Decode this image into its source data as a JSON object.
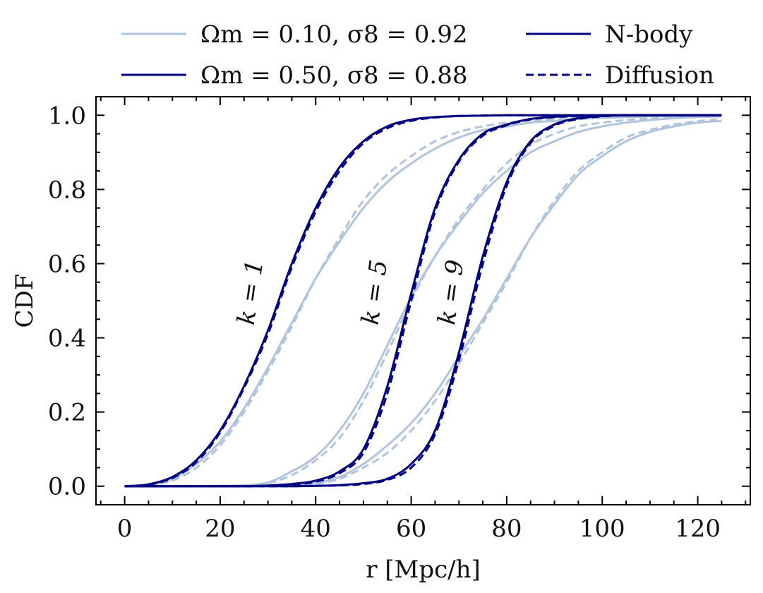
{
  "chart_data": {
    "type": "line",
    "xlabel": "r [Mpc/h]",
    "ylabel": "CDF",
    "xlim": [
      -6,
      131
    ],
    "ylim": [
      -0.05,
      1.05
    ],
    "x_ticks": [
      "0",
      "20",
      "40",
      "60",
      "80",
      "100",
      "120"
    ],
    "y_ticks": [
      "0.0",
      "0.2",
      "0.4",
      "0.6",
      "0.8",
      "1.0"
    ],
    "colors": {
      "light": "#b0c4de",
      "dark": "#000080"
    },
    "legend": {
      "placement": "top, outside plot",
      "entries": [
        {
          "label": "Ωm = 0.10, σ8 = 0.92",
          "color": "light",
          "style": "solid"
        },
        {
          "label": "Ωm = 0.50, σ8 = 0.88",
          "color": "dark",
          "style": "solid"
        },
        {
          "label": "N-body",
          "color": "dark",
          "style": "solid"
        },
        {
          "label": "Diffusion",
          "color": "dark",
          "style": "dashed"
        }
      ]
    },
    "annotations": [
      {
        "text": "k = 1",
        "x": 28,
        "y": 0.52
      },
      {
        "text": "k = 5",
        "x": 54,
        "y": 0.52
      },
      {
        "text": "k = 9",
        "x": 70,
        "y": 0.52
      }
    ],
    "x": [
      0,
      5,
      10,
      15,
      20,
      25,
      30,
      35,
      40,
      45,
      50,
      55,
      60,
      65,
      70,
      75,
      80,
      85,
      90,
      95,
      100,
      105,
      110,
      115,
      120,
      125
    ],
    "series": [
      {
        "name": "Ωm = 0.10, σ8 = 0.92",
        "k": 1,
        "model": "N-body",
        "color": "light",
        "style": "solid",
        "values": [
          0.0,
          0.004,
          0.02,
          0.06,
          0.12,
          0.21,
          0.32,
          0.44,
          0.56,
          0.66,
          0.75,
          0.82,
          0.87,
          0.91,
          0.94,
          0.96,
          0.97,
          0.98,
          0.985,
          0.99,
          0.993,
          0.995,
          0.997,
          0.998,
          0.999,
          1.0
        ]
      },
      {
        "name": "Ωm = 0.10, σ8 = 0.92",
        "k": 1,
        "model": "Diffusion",
        "color": "light",
        "style": "dashed",
        "values": [
          0.0,
          0.003,
          0.015,
          0.05,
          0.11,
          0.2,
          0.31,
          0.43,
          0.56,
          0.67,
          0.77,
          0.84,
          0.89,
          0.93,
          0.955,
          0.97,
          0.98,
          0.986,
          0.99,
          0.993,
          0.995,
          0.997,
          0.998,
          0.999,
          0.999,
          1.0
        ]
      },
      {
        "name": "Ωm = 0.50, σ8 = 0.88",
        "k": 1,
        "model": "N-body",
        "color": "dark",
        "style": "solid",
        "values": [
          0.0,
          0.005,
          0.025,
          0.07,
          0.15,
          0.27,
          0.42,
          0.6,
          0.75,
          0.86,
          0.93,
          0.97,
          0.988,
          0.995,
          0.998,
          0.999,
          1.0,
          1.0,
          1.0,
          1.0,
          1.0,
          1.0,
          1.0,
          1.0,
          1.0,
          1.0
        ]
      },
      {
        "name": "Ωm = 0.50, σ8 = 0.88",
        "k": 1,
        "model": "Diffusion",
        "color": "dark",
        "style": "dashed",
        "values": [
          0.0,
          0.004,
          0.022,
          0.065,
          0.145,
          0.265,
          0.41,
          0.59,
          0.74,
          0.85,
          0.925,
          0.965,
          0.985,
          0.994,
          0.998,
          0.999,
          1.0,
          1.0,
          1.0,
          1.0,
          1.0,
          1.0,
          1.0,
          1.0,
          1.0,
          1.0
        ]
      },
      {
        "name": "Ωm = 0.10, σ8 = 0.92",
        "k": 5,
        "model": "N-body",
        "color": "light",
        "style": "solid",
        "values": [
          0.0,
          0.0,
          0.0,
          0.0,
          0.001,
          0.003,
          0.01,
          0.04,
          0.08,
          0.15,
          0.25,
          0.38,
          0.51,
          0.62,
          0.71,
          0.79,
          0.85,
          0.9,
          0.93,
          0.955,
          0.97,
          0.98,
          0.987,
          0.992,
          0.995,
          0.997
        ]
      },
      {
        "name": "Ωm = 0.10, σ8 = 0.92",
        "k": 5,
        "model": "Diffusion",
        "color": "light",
        "style": "dashed",
        "values": [
          0.0,
          0.0,
          0.0,
          0.0,
          0.001,
          0.002,
          0.008,
          0.03,
          0.07,
          0.13,
          0.23,
          0.36,
          0.5,
          0.62,
          0.72,
          0.8,
          0.87,
          0.92,
          0.95,
          0.97,
          0.98,
          0.987,
          0.992,
          0.995,
          0.997,
          0.998
        ]
      },
      {
        "name": "Ωm = 0.50, σ8 = 0.88",
        "k": 5,
        "model": "N-body",
        "color": "dark",
        "style": "solid",
        "values": [
          0.0,
          0.0,
          0.0,
          0.0,
          0.0,
          0.0,
          0.002,
          0.006,
          0.015,
          0.04,
          0.1,
          0.27,
          0.52,
          0.75,
          0.88,
          0.95,
          0.975,
          0.99,
          0.996,
          0.999,
          1.0,
          1.0,
          1.0,
          1.0,
          1.0,
          1.0
        ]
      },
      {
        "name": "Ωm = 0.50, σ8 = 0.88",
        "k": 5,
        "model": "Diffusion",
        "color": "dark",
        "style": "dashed",
        "values": [
          0.0,
          0.0,
          0.0,
          0.0,
          0.0,
          0.0,
          0.001,
          0.004,
          0.012,
          0.035,
          0.09,
          0.25,
          0.5,
          0.74,
          0.875,
          0.945,
          0.973,
          0.989,
          0.995,
          0.998,
          1.0,
          1.0,
          1.0,
          1.0,
          1.0,
          1.0
        ]
      },
      {
        "name": "Ωm = 0.10, σ8 = 0.92",
        "k": 9,
        "model": "N-body",
        "color": "light",
        "style": "solid",
        "values": [
          0.0,
          0.0,
          0.0,
          0.0,
          0.0,
          0.0,
          0.0,
          0.002,
          0.008,
          0.025,
          0.06,
          0.11,
          0.17,
          0.25,
          0.35,
          0.45,
          0.56,
          0.67,
          0.76,
          0.84,
          0.89,
          0.93,
          0.955,
          0.97,
          0.98,
          0.985
        ]
      },
      {
        "name": "Ωm = 0.10, σ8 = 0.92",
        "k": 9,
        "model": "Diffusion",
        "color": "light",
        "style": "dashed",
        "values": [
          0.0,
          0.0,
          0.0,
          0.0,
          0.0,
          0.0,
          0.0,
          0.001,
          0.006,
          0.02,
          0.05,
          0.09,
          0.15,
          0.23,
          0.33,
          0.44,
          0.55,
          0.67,
          0.77,
          0.85,
          0.9,
          0.94,
          0.96,
          0.975,
          0.984,
          0.99
        ]
      },
      {
        "name": "Ωm = 0.50, σ8 = 0.88",
        "k": 9,
        "model": "N-body",
        "color": "dark",
        "style": "solid",
        "values": [
          0.0,
          0.0,
          0.0,
          0.0,
          0.0,
          0.0,
          0.0,
          0.0,
          0.001,
          0.003,
          0.008,
          0.02,
          0.06,
          0.15,
          0.36,
          0.62,
          0.82,
          0.93,
          0.975,
          0.992,
          0.998,
          1.0,
          1.0,
          1.0,
          1.0,
          1.0
        ]
      },
      {
        "name": "Ωm = 0.50, σ8 = 0.88",
        "k": 9,
        "model": "Diffusion",
        "color": "dark",
        "style": "dashed",
        "values": [
          0.0,
          0.0,
          0.0,
          0.0,
          0.0,
          0.0,
          0.0,
          0.0,
          0.001,
          0.002,
          0.006,
          0.017,
          0.05,
          0.14,
          0.34,
          0.6,
          0.81,
          0.925,
          0.972,
          0.99,
          0.997,
          1.0,
          1.0,
          1.0,
          1.0,
          1.0
        ]
      }
    ]
  }
}
